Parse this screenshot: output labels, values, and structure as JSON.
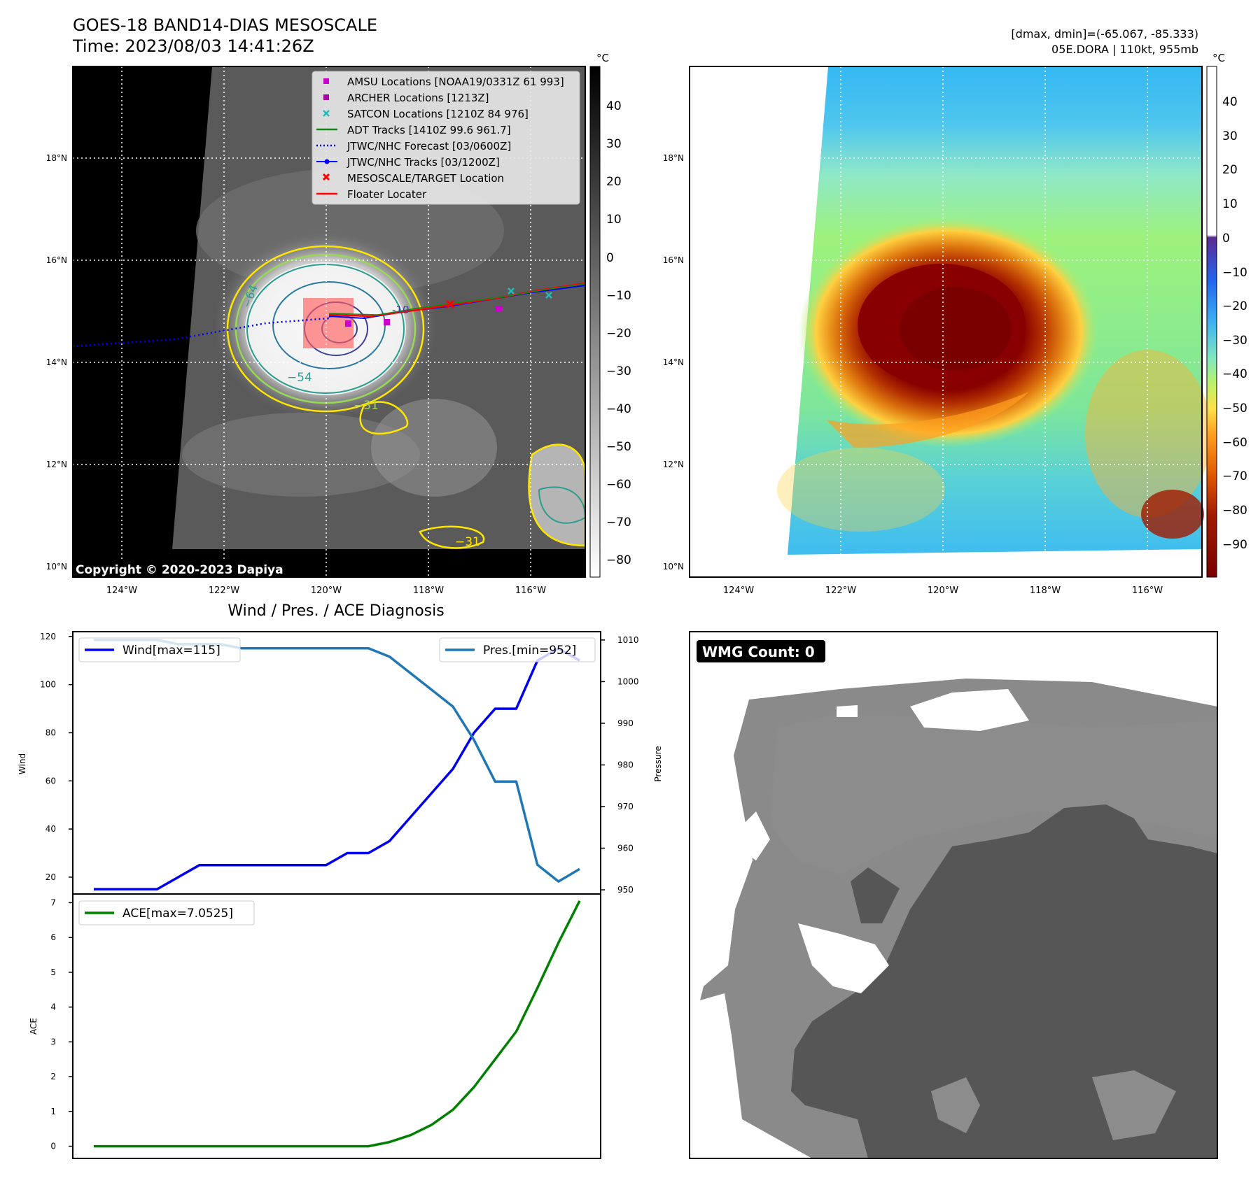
{
  "header": {
    "title_line1": "GOES-18 BAND14-DIAS MESOSCALE",
    "title_line2": "Time: 2023/08/03 14:41:26Z",
    "right_line1": "[dmax, dmin]=(-65.067, -85.333)",
    "right_line2": "05E.DORA | 110kt, 955mb"
  },
  "map_axes": {
    "lon_labels": [
      "124°W",
      "122°W",
      "120°W",
      "118°W",
      "116°W"
    ],
    "lat_labels": [
      "18°N",
      "16°N",
      "14°N",
      "12°N",
      "10°N"
    ]
  },
  "colorbar_left": {
    "unit": "°C",
    "ticks": [
      "40",
      "30",
      "20",
      "10",
      "0",
      "−10",
      "−20",
      "−30",
      "−40",
      "−50",
      "−60",
      "−70",
      "−80"
    ]
  },
  "colorbar_right": {
    "unit": "°C",
    "ticks": [
      "40",
      "30",
      "20",
      "10",
      "0",
      "−10",
      "−20",
      "−30",
      "−40",
      "−50",
      "−60",
      "−70",
      "−80",
      "−90"
    ]
  },
  "legend_left": {
    "items": [
      {
        "label": "AMSU Locations [NOAA19/0331Z 61 993]",
        "color": "#cc00cc",
        "marker": "square"
      },
      {
        "label": "ARCHER Locations [1213Z]",
        "color": "#aa00aa",
        "marker": "square"
      },
      {
        "label": "SATCON Locations [1210Z 84 976]",
        "color": "#22bbbb",
        "marker": "x"
      },
      {
        "label": "ADT Tracks [1410Z 99.6 961.7]",
        "color": "#118811",
        "marker": "line"
      },
      {
        "label": "JTWC/NHC Forecast [03/0600Z]",
        "color": "#0000ff",
        "marker": "dotted"
      },
      {
        "label": "JTWC/NHC Tracks [03/1200Z]",
        "color": "#0000ff",
        "marker": "line-dot"
      },
      {
        "label": "MESOSCALE/TARGET Location",
        "color": "#ff0000",
        "marker": "x"
      },
      {
        "label": "Floater Locater",
        "color": "#ff0000",
        "marker": "line"
      }
    ]
  },
  "map_annotations": {
    "copyright": "Copyright © 2020-2023 Dapiya",
    "contour_labels": [
      "−54",
      "−31",
      "−31",
      "−64",
      "-10"
    ]
  },
  "wmg_panel": {
    "badge": "WMG Count: 0"
  },
  "chart_data": [
    {
      "type": "line",
      "title": "Wind / Pres. / ACE Diagnosis",
      "ylabel": "Wind",
      "ylim": [
        13,
        122
      ],
      "yticks": [
        20,
        40,
        60,
        80,
        100,
        120
      ],
      "y2label": "Pressure",
      "y2lim": [
        949,
        1012
      ],
      "y2ticks": [
        950,
        960,
        970,
        980,
        990,
        1000,
        1010
      ],
      "series": [
        {
          "name": "Wind[max=115]",
          "axis": "left",
          "color": "#0000ee",
          "values": [
            15,
            15,
            15,
            15,
            20,
            25,
            25,
            25,
            25,
            25,
            25,
            25,
            30,
            30,
            35,
            45,
            55,
            65,
            80,
            90,
            90,
            110,
            115,
            110
          ]
        },
        {
          "name": "Pres.[min=952]",
          "axis": "right",
          "color": "#1f77b4",
          "values": [
            1010,
            1010,
            1010,
            1010,
            1009,
            1009,
            1009,
            1008,
            1008,
            1008,
            1008,
            1008,
            1008,
            1008,
            1006,
            1002,
            998,
            994,
            986,
            976,
            976,
            956,
            952,
            955
          ]
        }
      ]
    },
    {
      "type": "line",
      "ylabel": "ACE",
      "ylim": [
        -0.35,
        7.25
      ],
      "yticks": [
        0,
        1,
        2,
        3,
        4,
        5,
        6,
        7
      ],
      "series": [
        {
          "name": "ACE[max=7.0525]",
          "axis": "left",
          "color": "#008000",
          "values": [
            0,
            0,
            0,
            0,
            0,
            0,
            0,
            0,
            0,
            0,
            0,
            0,
            0,
            0,
            0.12,
            0.32,
            0.62,
            1.05,
            1.7,
            2.5,
            3.3,
            4.55,
            5.85,
            7.0525
          ]
        }
      ]
    }
  ]
}
